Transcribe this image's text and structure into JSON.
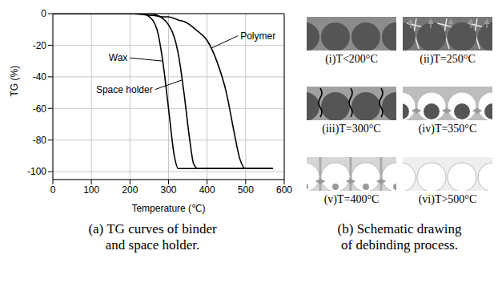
{
  "chart_data": {
    "type": "line",
    "title": "(a) TG curves of binder\nand space holder.",
    "xlabel": "Temperature (℃)",
    "ylabel": "TG (%)",
    "x": [
      0,
      100,
      200,
      230,
      250,
      270,
      285,
      300,
      315,
      325,
      340,
      355,
      365,
      375,
      400,
      425,
      450,
      470,
      485,
      500,
      550,
      570
    ],
    "series": [
      {
        "name": "Wax",
        "color": "#000000",
        "line_style": "solid",
        "values": [
          0,
          0,
          0,
          0,
          -2,
          -10,
          -30,
          -60,
          -90,
          -98,
          -98,
          -98,
          -98,
          -98,
          -98,
          -98,
          -98,
          -98,
          -98,
          -98,
          -98,
          -98
        ]
      },
      {
        "name": "Space holder",
        "color": "#000000",
        "line_style": "solid",
        "values": [
          0,
          0,
          0,
          0,
          0,
          -1,
          -3,
          -7,
          -15,
          -25,
          -50,
          -80,
          -95,
          -98,
          -98,
          -98,
          -98,
          -98,
          -98,
          -98,
          -98,
          -98
        ]
      },
      {
        "name": "Polymer",
        "color": "#000000",
        "line_style": "solid",
        "values": [
          0,
          0,
          0,
          -0.5,
          -1,
          -1.5,
          -2,
          -2,
          -3,
          -4,
          -5,
          -7,
          -9,
          -11,
          -17,
          -30,
          -50,
          -75,
          -92,
          -98,
          -98,
          -98
        ]
      }
    ],
    "xlim": [
      0,
      600
    ],
    "xticks": [
      0,
      100,
      200,
      300,
      400,
      500,
      600
    ],
    "ylim": [
      -105,
      0
    ],
    "yticks": [
      0,
      -20,
      -40,
      -60,
      -80,
      -100
    ],
    "grid": true
  },
  "schematic": {
    "stages": [
      "(i)T<200°C",
      "(ii)T=250°C",
      "(iii)T=300°C",
      "(iv)T=350°C",
      "(v)T=400°C",
      "(vi)T>500°C"
    ],
    "caption": "(b) Schematic drawing\nof debinding process."
  }
}
